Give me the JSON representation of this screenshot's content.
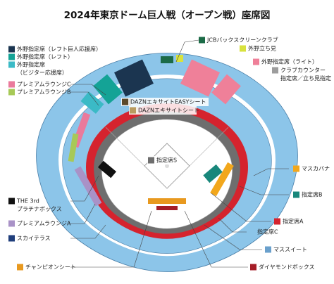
{
  "title": "2024年東京ドーム巨人戦（オープン戦）座席図",
  "legend": [
    {
      "label": [
        "外野指定席（レフト巨人応援席）"
      ],
      "color": "#1b3550"
    },
    {
      "label": [
        "外野指定席（レフト）"
      ],
      "color": "#14a396"
    },
    {
      "label": [
        "外野指定席",
        "（ビジター応援席）"
      ],
      "color": "#3bbac6"
    },
    {
      "label": [
        "プレミアムラウンジC"
      ],
      "color": "#ea7a9c"
    },
    {
      "label": [
        "プレミアムラウンジB"
      ],
      "color": "#a7c957"
    },
    {
      "label": [
        "JCBバックスクリーンクラブ"
      ],
      "color": "#1c6b47"
    },
    {
      "label": [
        "外野立ち見"
      ],
      "color": "#d8e23e"
    },
    {
      "label": [
        "外野指定席（ライト）"
      ],
      "color": "#ef8099"
    },
    {
      "label": [
        "クラブカウンター",
        "指定席／立ち見指定"
      ],
      "color": "#9d9d9d"
    },
    {
      "label": [
        "DAZNエキサイトEASYシート"
      ],
      "color": "#5c4a2b"
    },
    {
      "label": [
        "DAZNエキサイトシート"
      ],
      "color": "#b99b5f"
    },
    {
      "label": [
        "指定席S"
      ],
      "color": "#6e6e6e"
    },
    {
      "label": [
        "マスカバナ"
      ],
      "color": "#f2a71c"
    },
    {
      "label": [
        "指定席B"
      ],
      "color": "#18877b"
    },
    {
      "label": [
        "指定席A"
      ],
      "color": "#d5232e"
    },
    {
      "label": [
        "指定席C"
      ],
      "color": "#8cc5e9"
    },
    {
      "label": [
        "マススイート"
      ],
      "color": "#6aa0cc"
    },
    {
      "label": [
        "ダイヤモンドボックス"
      ],
      "color": "#a51d27"
    },
    {
      "label": [
        "THE 3rd",
        "プラチナボックス"
      ],
      "color": "#111111"
    },
    {
      "label": [
        "プレミアムラウンジA"
      ],
      "color": "#a992c7"
    },
    {
      "label": [
        "スカイテラス"
      ],
      "color": "#1f3e7b"
    },
    {
      "label": [
        "チャンピオンシート"
      ],
      "color": "#e8991f"
    }
  ]
}
